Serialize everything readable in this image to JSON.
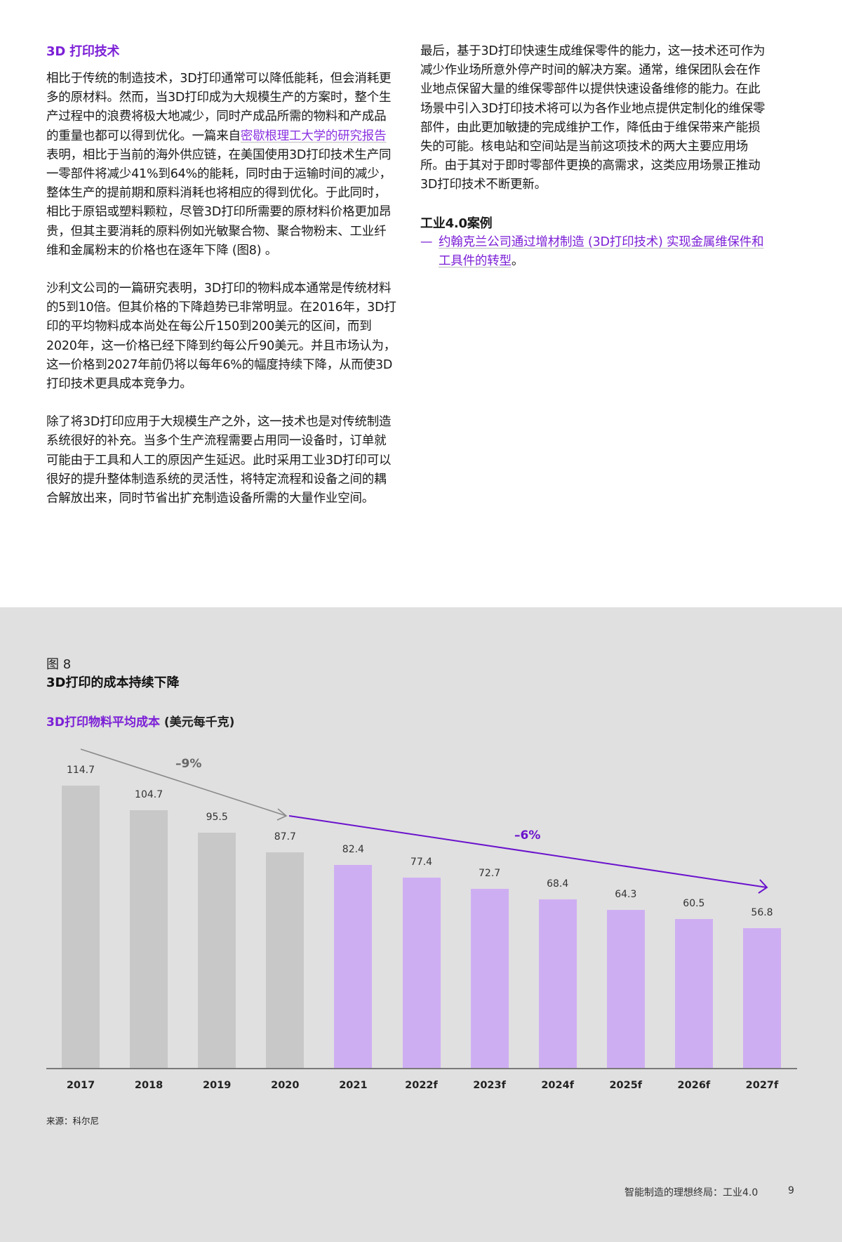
{
  "left_column": {
    "section_title": "3D 打印技术",
    "para1_before_link": "相比于传统的制造技术，3D打印通常可以降低能耗，但会消耗更多的原材料。然而，当3D打印成为大规模生产的方案时，整个生产过程中的浪费将极大地减少，同时产成品所需的物料和产成品的重量也都可以得到优化。一篇来自",
    "para1_link": "密歇根理工大学的研究报告",
    "para1_after_link": "表明，相比于当前的海外供应链，在美国使用3D打印技术生产同一零部件将减少41%到64%的能耗，同时由于运输时间的减少，整体生产的提前期和原料消耗也将相应的得到优化。于此同时，相比于原铝或塑料颗粒，尽管3D打印所需要的原材料价格更加昂贵，但其主要消耗的原料例如光敏聚合物、聚合物粉末、工业纤维和金属粉末的价格也在逐年下降 (图8) 。",
    "para2": "沙利文公司的一篇研究表明，3D打印的物料成本通常是传统材料的5到10倍。但其价格的下降趋势已非常明显。在2016年，3D打印的平均物料成本尚处在每公斤150到200美元的区间，而到2020年，这一价格已经下降到约每公斤90美元。并且市场认为，这一价格到2027年前仍将以每年6%的幅度持续下降，从而使3D打印技术更具成本竞争力。",
    "para3": "除了将3D打印应用于大规模生产之外，这一技术也是对传统制造系统很好的补充。当多个生产流程需要占用同一设备时，订单就可能由于工具和人工的原因产生延迟。此时采用工业3D打印可以很好的提升整体制造系统的灵活性，将特定流程和设备之间的耦合解放出来，同时节省出扩充制造设备所需的大量作业空间。"
  },
  "right_column": {
    "para1": "最后，基于3D打印快速生成维保零件的能力，这一技术还可作为减少作业场所意外停产时间的解决方案。通常，维保团队会在作业地点保留大量的维保零部件以提供快速设备维修的能力。在此场景中引入3D打印技术将可以为各作业地点提供定制化的维保零部件，由此更加敏捷的完成维护工作，降低由于维保带来产能损失的可能。核电站和空间站是当前这项技术的两大主要应用场所。由于其对于即时零部件更换的高需求，这类应用场景正推动3D打印技术不断更新。",
    "case_title": "工业4.0案例",
    "case_dash": "—",
    "case_link": "约翰克兰公司通过增材制造 (3D打印技术) 实现金属维保件和工具件的转型",
    "case_end": "。"
  },
  "figure": {
    "label": "图 8",
    "title": "3D打印的成本持续下降",
    "subtitle_main": "3D打印物料平均成本",
    "subtitle_unit": " (美元每千克)",
    "source": "来源：科尔尼"
  },
  "colors": {
    "accent_purple": "#7b1fd6",
    "historical_bar": "#c8c8c8",
    "forecast_bar": "#ceaef2",
    "panel_bg": "#e0e0e0"
  },
  "chart_data": {
    "type": "bar",
    "title": "3D打印的成本持续下降",
    "subtitle": "3D打印物料平均成本 (美元每千克)",
    "xlabel": "",
    "ylabel": "美元每千克",
    "categories": [
      "2017",
      "2018",
      "2019",
      "2020",
      "2021",
      "2022f",
      "2023f",
      "2024f",
      "2025f",
      "2026f",
      "2027f"
    ],
    "values": [
      114.7,
      104.7,
      95.5,
      87.7,
      82.4,
      77.4,
      72.7,
      68.4,
      64.3,
      60.5,
      56.8
    ],
    "series_type": [
      "historical",
      "historical",
      "historical",
      "historical",
      "forecast",
      "forecast",
      "forecast",
      "forecast",
      "forecast",
      "forecast",
      "forecast"
    ],
    "annotations": [
      {
        "text": "–9%",
        "from": "2017",
        "to": "2020",
        "color": "#888888"
      },
      {
        "text": "–6%",
        "from": "2020",
        "to": "2027f",
        "color": "#6a12cc"
      }
    ],
    "grid": false,
    "legend": "none",
    "ylim": [
      0,
      120
    ],
    "source": "来源：科尔尼"
  },
  "footer": {
    "doc_title": "智能制造的理想终局：工业4.0",
    "page_number": "9"
  }
}
